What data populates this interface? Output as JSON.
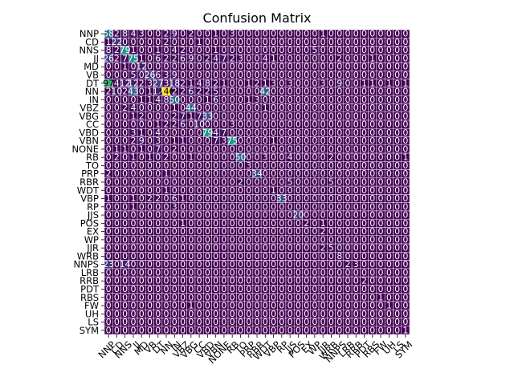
{
  "chart_data": {
    "type": "heatmap",
    "title": "Confusion Matrix",
    "xlabel": "",
    "ylabel": "",
    "labels": [
      "NNP",
      "CD",
      "NNS",
      "JJ",
      "MD",
      "VB",
      "DT",
      "NN",
      "IN",
      "VBZ",
      "VBG",
      "CC",
      "VBD",
      "VBN",
      "NONE",
      "RB",
      "TO",
      "PRP",
      "RBR",
      "WDT",
      "VBP",
      "RP",
      "JJS",
      "POS",
      "EX",
      "WP",
      "JJR",
      "WRB",
      "NNPS",
      "LRB",
      "RRB",
      "PDT",
      "RBS",
      "FW",
      "UH",
      "LS",
      "SYM"
    ],
    "matrix": [
      [
        58,
        2,
        8,
        4,
        3,
        0,
        0,
        2,
        9,
        0,
        2,
        0,
        0,
        1,
        0,
        3,
        0,
        0,
        0,
        0,
        0,
        0,
        0,
        0,
        0,
        0,
        1,
        0,
        0,
        0,
        0,
        0,
        0,
        0,
        0,
        0,
        0
      ],
      [
        1,
        22,
        0,
        0,
        0,
        0,
        0,
        2,
        0,
        0,
        0,
        1,
        0,
        0,
        0,
        0,
        0,
        0,
        0,
        0,
        0,
        0,
        0,
        0,
        0,
        0,
        0,
        0,
        0,
        0,
        0,
        0,
        0,
        0,
        0,
        0,
        0
      ],
      [
        8,
        2,
        79,
        1,
        0,
        0,
        1,
        0,
        4,
        2,
        0,
        0,
        0,
        1,
        0,
        0,
        0,
        0,
        0,
        0,
        0,
        0,
        0,
        0,
        0,
        5,
        0,
        0,
        0,
        0,
        0,
        0,
        0,
        0,
        0,
        0,
        0
      ],
      [
        26,
        2,
        7,
        75,
        1,
        0,
        6,
        2,
        2,
        6,
        9,
        0,
        2,
        4,
        7,
        2,
        3,
        0,
        0,
        4,
        1,
        0,
        0,
        0,
        0,
        0,
        0,
        0,
        2,
        0,
        0,
        0,
        1,
        0,
        0,
        0,
        0
      ],
      [
        0,
        0,
        1,
        0,
        12,
        0,
        0,
        0,
        0,
        0,
        0,
        0,
        0,
        0,
        0,
        0,
        0,
        0,
        0,
        0,
        0,
        0,
        0,
        0,
        0,
        0,
        0,
        0,
        0,
        0,
        0,
        0,
        0,
        0,
        0,
        0,
        0
      ],
      [
        0,
        0,
        0,
        5,
        0,
        26,
        6,
        3,
        9,
        0,
        0,
        0,
        0,
        0,
        0,
        0,
        0,
        0,
        0,
        0,
        0,
        0,
        0,
        0,
        0,
        0,
        0,
        0,
        0,
        0,
        0,
        0,
        0,
        0,
        0,
        0,
        0
      ],
      [
        97,
        4,
        12,
        12,
        2,
        3,
        27,
        3,
        18,
        2,
        1,
        4,
        8,
        2,
        1,
        0,
        0,
        1,
        2,
        1,
        3,
        0,
        3,
        0,
        0,
        0,
        3,
        0,
        9,
        0,
        0,
        1,
        1,
        0,
        1,
        0,
        1
      ],
      [
        2,
        10,
        2,
        43,
        0,
        1,
        12,
        146,
        2,
        2,
        6,
        2,
        2,
        5,
        0,
        0,
        0,
        0,
        0,
        42,
        0,
        0,
        0,
        0,
        0,
        0,
        0,
        0,
        0,
        0,
        0,
        0,
        0,
        0,
        0,
        0,
        0
      ],
      [
        0,
        0,
        0,
        0,
        1,
        1,
        4,
        8,
        50,
        0,
        0,
        0,
        1,
        6,
        0,
        0,
        0,
        1,
        3,
        0,
        0,
        0,
        0,
        0,
        0,
        0,
        0,
        0,
        0,
        0,
        0,
        0,
        0,
        0,
        0,
        0,
        0
      ],
      [
        0,
        0,
        2,
        4,
        0,
        0,
        0,
        0,
        1,
        0,
        44,
        0,
        0,
        0,
        0,
        0,
        0,
        0,
        0,
        1,
        0,
        0,
        0,
        0,
        0,
        0,
        0,
        0,
        0,
        0,
        0,
        0,
        0,
        0,
        0,
        0,
        0
      ],
      [
        0,
        0,
        0,
        1,
        2,
        0,
        0,
        0,
        2,
        7,
        1,
        7,
        33,
        0,
        0,
        0,
        0,
        0,
        0,
        0,
        0,
        0,
        0,
        0,
        0,
        0,
        0,
        0,
        0,
        0,
        0,
        0,
        0,
        0,
        0,
        0,
        0
      ],
      [
        0,
        0,
        0,
        0,
        0,
        0,
        1,
        2,
        2,
        6,
        0,
        10,
        0,
        0,
        0,
        3,
        0,
        0,
        0,
        0,
        0,
        0,
        0,
        0,
        0,
        0,
        0,
        0,
        0,
        0,
        0,
        0,
        0,
        0,
        0,
        0,
        0
      ],
      [
        0,
        0,
        0,
        3,
        1,
        0,
        4,
        0,
        0,
        0,
        0,
        0,
        79,
        4,
        7,
        0,
        0,
        0,
        0,
        0,
        0,
        0,
        0,
        0,
        0,
        0,
        0,
        0,
        0,
        0,
        0,
        0,
        0,
        0,
        0,
        0,
        0
      ],
      [
        0,
        0,
        0,
        2,
        9,
        0,
        3,
        0,
        1,
        1,
        0,
        0,
        0,
        7,
        3,
        75,
        0,
        0,
        0,
        0,
        1,
        0,
        0,
        0,
        0,
        0,
        0,
        0,
        0,
        0,
        0,
        0,
        0,
        0,
        0,
        0,
        0
      ],
      [
        0,
        1,
        1,
        0,
        1,
        0,
        7,
        0,
        2,
        0,
        0,
        0,
        0,
        0,
        0,
        0,
        0,
        0,
        0,
        0,
        0,
        0,
        0,
        0,
        0,
        0,
        0,
        0,
        0,
        0,
        0,
        0,
        0,
        0,
        0,
        0,
        0
      ],
      [
        0,
        2,
        0,
        1,
        0,
        1,
        0,
        2,
        0,
        0,
        1,
        0,
        0,
        0,
        0,
        0,
        50,
        0,
        0,
        3,
        0,
        0,
        4,
        0,
        0,
        0,
        0,
        2,
        0,
        0,
        0,
        0,
        0,
        0,
        0,
        0,
        1
      ],
      [
        0,
        0,
        0,
        0,
        0,
        0,
        0,
        0,
        0,
        0,
        0,
        0,
        0,
        0,
        0,
        0,
        0,
        3,
        0,
        0,
        0,
        0,
        0,
        0,
        0,
        0,
        0,
        0,
        0,
        0,
        0,
        0,
        0,
        0,
        0,
        0,
        0
      ],
      [
        2,
        0,
        0,
        0,
        0,
        0,
        0,
        1,
        0,
        0,
        0,
        0,
        0,
        0,
        0,
        0,
        0,
        0,
        34,
        0,
        0,
        0,
        0,
        0,
        0,
        0,
        0,
        0,
        0,
        0,
        0,
        0,
        0,
        0,
        0,
        0,
        0
      ],
      [
        0,
        0,
        0,
        0,
        0,
        0,
        0,
        0,
        0,
        0,
        0,
        0,
        0,
        0,
        0,
        0,
        2,
        0,
        0,
        0,
        0,
        0,
        5,
        0,
        0,
        0,
        0,
        5,
        0,
        0,
        0,
        0,
        0,
        0,
        0,
        0,
        0
      ],
      [
        0,
        0,
        0,
        0,
        0,
        0,
        0,
        1,
        0,
        0,
        0,
        0,
        0,
        0,
        0,
        0,
        0,
        0,
        0,
        0,
        1,
        0,
        0,
        0,
        0,
        0,
        0,
        0,
        0,
        0,
        0,
        0,
        0,
        0,
        0,
        0,
        0
      ],
      [
        1,
        0,
        0,
        1,
        0,
        2,
        2,
        0,
        6,
        1,
        0,
        0,
        0,
        0,
        0,
        0,
        0,
        0,
        0,
        0,
        0,
        33,
        0,
        0,
        0,
        0,
        0,
        0,
        0,
        0,
        0,
        0,
        0,
        0,
        0,
        0,
        0
      ],
      [
        0,
        0,
        0,
        1,
        0,
        0,
        0,
        0,
        3,
        0,
        0,
        0,
        0,
        0,
        0,
        0,
        0,
        0,
        0,
        0,
        0,
        0,
        0,
        0,
        0,
        0,
        0,
        0,
        0,
        0,
        0,
        0,
        0,
        0,
        0,
        0,
        0
      ],
      [
        0,
        0,
        0,
        0,
        0,
        0,
        0,
        0,
        0,
        0,
        0,
        0,
        0,
        0,
        0,
        0,
        0,
        0,
        0,
        0,
        0,
        0,
        0,
        20,
        0,
        0,
        0,
        0,
        0,
        0,
        0,
        0,
        0,
        0,
        0,
        0,
        0
      ],
      [
        0,
        0,
        0,
        0,
        0,
        0,
        0,
        0,
        0,
        1,
        0,
        0,
        0,
        0,
        0,
        0,
        0,
        0,
        0,
        0,
        0,
        0,
        0,
        0,
        2,
        0,
        1,
        0,
        0,
        0,
        0,
        0,
        0,
        0,
        0,
        0,
        0
      ],
      [
        0,
        0,
        0,
        0,
        0,
        0,
        0,
        0,
        0,
        0,
        0,
        0,
        0,
        0,
        0,
        0,
        0,
        0,
        0,
        0,
        0,
        0,
        0,
        0,
        0,
        0,
        2,
        0,
        0,
        0,
        0,
        0,
        0,
        0,
        0,
        0,
        0
      ],
      [
        0,
        0,
        0,
        0,
        0,
        0,
        0,
        0,
        0,
        0,
        0,
        0,
        0,
        0,
        0,
        0,
        0,
        0,
        0,
        0,
        0,
        0,
        0,
        0,
        0,
        0,
        0,
        0,
        0,
        0,
        0,
        0,
        0,
        0,
        0,
        0,
        0
      ],
      [
        0,
        0,
        0,
        0,
        0,
        0,
        0,
        0,
        0,
        0,
        0,
        0,
        0,
        0,
        0,
        0,
        0,
        0,
        0,
        0,
        0,
        0,
        0,
        0,
        0,
        0,
        2,
        5,
        0,
        0,
        0,
        0,
        0,
        0,
        0,
        0,
        0
      ],
      [
        0,
        0,
        0,
        0,
        0,
        0,
        0,
        0,
        0,
        0,
        0,
        0,
        0,
        0,
        0,
        0,
        0,
        0,
        0,
        0,
        0,
        0,
        0,
        0,
        0,
        0,
        0,
        0,
        8,
        0,
        0,
        0,
        0,
        0,
        0,
        0,
        0
      ],
      [
        23,
        0,
        14,
        0,
        0,
        0,
        0,
        0,
        0,
        0,
        0,
        0,
        0,
        0,
        0,
        0,
        0,
        0,
        0,
        0,
        0,
        0,
        0,
        0,
        0,
        0,
        0,
        0,
        0,
        2,
        3,
        0,
        0,
        0,
        0,
        0,
        0
      ],
      [
        0,
        0,
        0,
        0,
        0,
        0,
        0,
        0,
        0,
        0,
        0,
        0,
        0,
        0,
        0,
        0,
        0,
        0,
        0,
        0,
        0,
        0,
        0,
        0,
        0,
        0,
        0,
        0,
        0,
        0,
        0,
        0,
        0,
        0,
        0,
        0,
        0
      ],
      [
        0,
        0,
        0,
        0,
        0,
        0,
        0,
        0,
        0,
        0,
        0,
        0,
        0,
        0,
        0,
        0,
        0,
        0,
        0,
        0,
        0,
        0,
        0,
        0,
        0,
        0,
        0,
        0,
        0,
        0,
        0,
        2,
        0,
        0,
        0,
        0,
        0
      ],
      [
        0,
        0,
        0,
        0,
        0,
        0,
        0,
        0,
        0,
        0,
        0,
        0,
        0,
        0,
        0,
        0,
        0,
        0,
        0,
        0,
        0,
        0,
        0,
        0,
        0,
        0,
        0,
        0,
        0,
        0,
        0,
        0,
        0,
        0,
        0,
        0,
        0
      ],
      [
        0,
        0,
        0,
        0,
        0,
        0,
        0,
        0,
        0,
        0,
        0,
        0,
        0,
        0,
        0,
        0,
        0,
        0,
        0,
        0,
        0,
        0,
        0,
        0,
        0,
        0,
        0,
        0,
        0,
        0,
        0,
        0,
        0,
        1,
        0,
        0,
        0
      ],
      [
        0,
        0,
        0,
        0,
        0,
        0,
        0,
        0,
        0,
        0,
        1,
        0,
        0,
        0,
        0,
        0,
        0,
        0,
        0,
        0,
        0,
        0,
        0,
        0,
        0,
        0,
        0,
        0,
        0,
        0,
        0,
        0,
        0,
        0,
        1,
        0,
        0
      ],
      [
        0,
        0,
        0,
        0,
        0,
        0,
        0,
        0,
        0,
        0,
        0,
        0,
        0,
        0,
        0,
        0,
        0,
        0,
        0,
        0,
        0,
        0,
        0,
        0,
        0,
        0,
        0,
        0,
        0,
        0,
        0,
        0,
        0,
        0,
        0,
        0,
        0
      ],
      [
        0,
        0,
        0,
        0,
        0,
        0,
        0,
        0,
        0,
        0,
        0,
        0,
        0,
        0,
        0,
        0,
        0,
        0,
        0,
        0,
        0,
        0,
        0,
        0,
        0,
        0,
        0,
        0,
        0,
        0,
        0,
        0,
        0,
        0,
        0,
        0,
        0
      ],
      [
        0,
        0,
        0,
        0,
        0,
        0,
        0,
        0,
        0,
        0,
        0,
        0,
        0,
        0,
        0,
        0,
        0,
        0,
        0,
        0,
        0,
        0,
        0,
        0,
        0,
        0,
        0,
        0,
        0,
        0,
        0,
        0,
        0,
        0,
        0,
        0,
        1
      ]
    ],
    "vmin": 0,
    "vmax": 146,
    "colormap": "viridis",
    "annotated": true,
    "grid": true,
    "grid_color": "#ffffff",
    "x_tick_rotation": 45,
    "colorbar": false
  }
}
